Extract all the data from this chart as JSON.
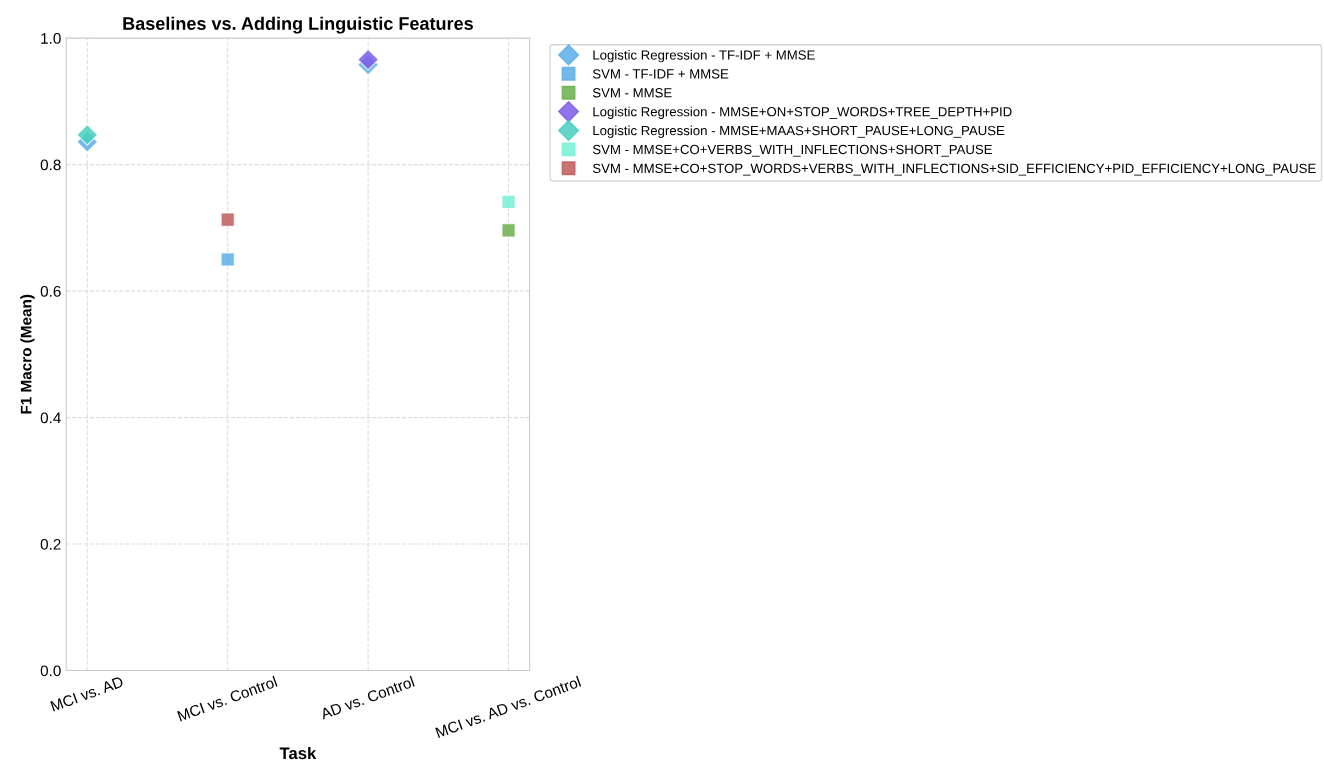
{
  "chart_data": {
    "type": "scatter",
    "title": "Baselines vs. Adding Linguistic Features",
    "xlabel": "Task",
    "ylabel": "F1 Macro (Mean)",
    "categories": [
      "MCI vs. AD",
      "MCI vs. Control",
      "AD vs. Control",
      "MCI vs. AD vs. Control"
    ],
    "ylim": [
      0,
      1
    ],
    "yticks": [
      {
        "value": 0,
        "label": "0.0"
      },
      {
        "value": 0.2,
        "label": "0.2"
      },
      {
        "value": 0.4,
        "label": "0.4"
      },
      {
        "value": 0.6,
        "label": "0.6"
      },
      {
        "value": 0.8,
        "label": "0.8"
      },
      {
        "value": 1,
        "label": "1.0"
      }
    ],
    "grid": true,
    "legend": "top right",
    "line_style": "dashed",
    "series": [
      {
        "name": "Logistic Regression - TF-IDF + MMSE",
        "color": "#5aaee8",
        "marker": "diamond",
        "values": [
          0.836,
          null,
          0.958,
          null
        ]
      },
      {
        "name": "SVM - TF-IDF + MMSE",
        "color": "#5aaee8",
        "marker": "square",
        "values": [
          null,
          0.65,
          null,
          null
        ]
      },
      {
        "name": "SVM - MMSE",
        "color": "#6ab04c",
        "marker": "square",
        "values": [
          null,
          null,
          null,
          0.696
        ]
      },
      {
        "name": "Logistic Regression - MMSE+ON+STOP_WORDS+TREE_DEPTH+PID",
        "color": "#7b5ce6",
        "marker": "diamond",
        "values": [
          null,
          null,
          0.966,
          null
        ]
      },
      {
        "name": "Logistic Regression - MMSE+MAAS+SHORT_PAUSE+LONG_PAUSE",
        "color": "#48cfc0",
        "marker": "diamond",
        "values": [
          0.847,
          null,
          null,
          null
        ]
      },
      {
        "name": "SVM - MMSE+CO+VERBS_WITH_INFLECTIONS+SHORT_PAUSE",
        "color": "#76f0d4",
        "marker": "square",
        "values": [
          null,
          null,
          null,
          0.741
        ]
      },
      {
        "name": "SVM - MMSE+CO+STOP_WORDS+VERBS_WITH_INFLECTIONS+SID_EFFICIENCY+PID_EFFICIENCY+LONG_PAUSE",
        "color": "#c05a5a",
        "marker": "square",
        "values": [
          null,
          0.713,
          null,
          null
        ]
      }
    ]
  }
}
